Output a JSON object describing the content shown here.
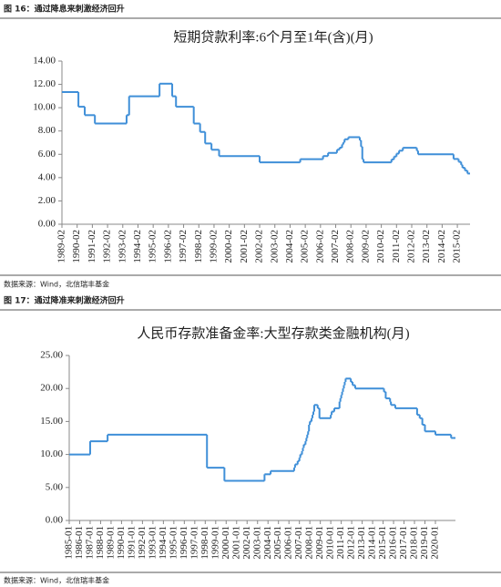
{
  "figures": [
    {
      "label": "图 16：通过降息来刺激经济回升",
      "source": "数据来源：Wind，北信瑞丰基金"
    },
    {
      "label": "图 17：通过降准来刺激经济回升",
      "source": "数据来源：Wind，北信瑞丰基金"
    }
  ],
  "chart_data": [
    {
      "type": "line",
      "step": "post",
      "title": "短期贷款利率:6个月至1年(含)(月)",
      "xlim": [
        "1989-02",
        "2015-12"
      ],
      "xticks": [
        "1989-02",
        "1990-02",
        "1991-02",
        "1992-02",
        "1993-02",
        "1994-02",
        "1995-02",
        "1996-02",
        "1997-02",
        "1998-02",
        "1999-02",
        "2000-02",
        "2001-02",
        "2002-02",
        "2003-02",
        "2004-02",
        "2005-02",
        "2006-02",
        "2007-02",
        "2008-02",
        "2009-02",
        "2010-02",
        "2011-02",
        "2012-02",
        "2013-02",
        "2014-02",
        "2015-02"
      ],
      "ylim": [
        0,
        14
      ],
      "yticks": [
        {
          "value": 0,
          "label": "0.00"
        },
        {
          "value": 2,
          "label": "2.00"
        },
        {
          "value": 4,
          "label": "4.00"
        },
        {
          "value": 6,
          "label": "6.00"
        },
        {
          "value": 8,
          "label": "8.00"
        },
        {
          "value": 10,
          "label": "10.00"
        },
        {
          "value": 12,
          "label": "12.00"
        },
        {
          "value": 14,
          "label": "14.00"
        }
      ],
      "series": [
        {
          "color": "#3f8fd8",
          "x": [
            "1989-02",
            "1990-03",
            "1990-08",
            "1991-04",
            "1993-05",
            "1993-07",
            "1995-07",
            "1996-05",
            "1996-08",
            "1997-10",
            "1998-03",
            "1998-07",
            "1998-12",
            "1999-06",
            "2002-02",
            "2004-10",
            "2006-04",
            "2006-08",
            "2007-03",
            "2007-05",
            "2007-07",
            "2007-08",
            "2007-09",
            "2007-12",
            "2008-09",
            "2008-10",
            "2008-11",
            "2008-12",
            "2010-10",
            "2010-12",
            "2011-02",
            "2011-04",
            "2011-07",
            "2012-06",
            "2012-07",
            "2014-11",
            "2015-03",
            "2015-05",
            "2015-06",
            "2015-08",
            "2015-10"
          ],
          "values": [
            11.34,
            10.08,
            9.36,
            8.64,
            9.36,
            10.98,
            12.06,
            10.98,
            10.08,
            8.64,
            7.92,
            6.93,
            6.39,
            5.85,
            5.31,
            5.58,
            5.85,
            6.12,
            6.39,
            6.57,
            6.84,
            7.02,
            7.29,
            7.47,
            7.2,
            6.66,
            5.58,
            5.31,
            5.56,
            5.81,
            6.06,
            6.31,
            6.56,
            6.31,
            6.0,
            5.6,
            5.35,
            5.1,
            4.85,
            4.6,
            4.35
          ]
        }
      ]
    },
    {
      "type": "line",
      "step": "post",
      "title": "人民币存款准备金率:大型存款类金融机构(月)",
      "xlim": [
        "1985-01",
        "2021-12"
      ],
      "xticks": [
        "1985-01",
        "1986-01",
        "1987-01",
        "1988-01",
        "1989-01",
        "1990-01",
        "1991-01",
        "1992-01",
        "1993-01",
        "1994-01",
        "1995-01",
        "1996-01",
        "1997-01",
        "1998-01",
        "1999-01",
        "2000-01",
        "2001-01",
        "2002-01",
        "2003-01",
        "2004-01",
        "2005-01",
        "2006-01",
        "2007-01",
        "2008-01",
        "2009-01",
        "2010-01",
        "2011-01",
        "2012-01",
        "2013-01",
        "2014-01",
        "2015-01",
        "2016-01",
        "2017-01",
        "2018-01",
        "2019-01",
        "2020-01"
      ],
      "ylim": [
        0,
        25
      ],
      "yticks": [
        {
          "value": 0,
          "label": "0.00"
        },
        {
          "value": 5,
          "label": "5.00"
        },
        {
          "value": 10,
          "label": "10.00"
        },
        {
          "value": 15,
          "label": "15.00"
        },
        {
          "value": 20,
          "label": "20.00"
        },
        {
          "value": 25,
          "label": "25.00"
        }
      ],
      "series": [
        {
          "color": "#3f8fd8",
          "x": [
            "1985-01",
            "1987-01",
            "1988-09",
            "1998-03",
            "1999-11",
            "2003-09",
            "2004-04",
            "2006-07",
            "2006-08",
            "2006-11",
            "2007-01",
            "2007-02",
            "2007-04",
            "2007-05",
            "2007-06",
            "2007-08",
            "2007-09",
            "2007-10",
            "2007-11",
            "2007-12",
            "2008-01",
            "2008-03",
            "2008-04",
            "2008-05",
            "2008-06",
            "2008-10",
            "2008-12",
            "2010-01",
            "2010-02",
            "2010-05",
            "2010-11",
            "2010-12",
            "2011-01",
            "2011-02",
            "2011-03",
            "2011-04",
            "2011-05",
            "2011-06",
            "2011-12",
            "2012-02",
            "2012-05",
            "2015-02",
            "2015-04",
            "2015-09",
            "2015-10",
            "2016-03",
            "2018-04",
            "2018-07",
            "2018-10",
            "2019-01",
            "2020-01",
            "2021-07"
          ],
          "values": [
            10,
            12,
            13,
            8,
            6,
            7,
            7.5,
            8,
            8.5,
            9,
            9.5,
            10,
            10.5,
            11,
            11.5,
            12,
            12.5,
            13,
            13.5,
            14.5,
            15,
            15.5,
            16,
            16.5,
            17.5,
            17,
            15.5,
            16,
            16.5,
            17,
            18,
            18.5,
            19,
            19.5,
            20,
            20.5,
            21,
            21.5,
            21,
            20.5,
            20,
            19.5,
            18.5,
            18,
            17.5,
            17,
            16,
            15.5,
            14.5,
            13.5,
            13,
            12.5
          ]
        }
      ]
    }
  ]
}
